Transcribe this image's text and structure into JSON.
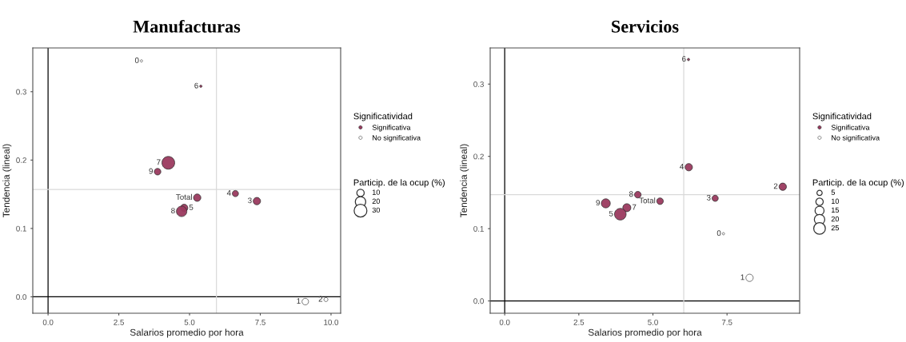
{
  "chart_data": [
    {
      "type": "bubble",
      "title": "Manufacturas",
      "xlabel": "Salarios promedio por hora",
      "ylabel": "Tendencia (lineal)",
      "legend_title": "Significatividad",
      "legend": "right",
      "xlim": [
        -0.54,
        10.34
      ],
      "ylim": [
        -0.024,
        0.364
      ],
      "xticks": [
        {
          "value": 0,
          "label": "0.0"
        },
        {
          "value": 2.5,
          "label": "2.5"
        },
        {
          "value": 5,
          "label": "5.0"
        },
        {
          "value": 7.5,
          "label": "7.5"
        },
        {
          "value": 10,
          "label": "10.0"
        }
      ],
      "yticks": [
        {
          "value": 0,
          "label": "0.0"
        },
        {
          "value": 0.1,
          "label": "0.1"
        },
        {
          "value": 0.2,
          "label": "0.2"
        },
        {
          "value": 0.3,
          "label": "0.3"
        }
      ],
      "grid": false,
      "size_legend": [
        10,
        20,
        30
      ],
      "series": [
        {
          "name": "Significativa",
          "color": "#9b3a5f",
          "x": [
            5.4,
            4.25,
            3.87,
            5.27,
            6.62,
            7.38,
            4.81,
            4.72
          ],
          "values": [
            0.308,
            0.196,
            0.183,
            0.145,
            0.151,
            0.14,
            0.13,
            0.125
          ],
          "sizes": [
            1,
            30,
            8,
            10,
            7,
            10,
            10,
            20
          ]
        },
        {
          "name": "No significativa",
          "color": "#ffffff",
          "x": [
            3.3,
            9.09,
            9.82
          ],
          "values": [
            0.345,
            -0.007,
            -0.004
          ],
          "sizes": [
            1,
            8,
            3
          ]
        }
      ],
      "ref_lines": [
        {
          "axis": "x",
          "value": 0,
          "color": "#000000"
        },
        {
          "axis": "y",
          "value": 0,
          "color": "#000000"
        },
        {
          "axis": "x",
          "value": 5.95,
          "color": "#d9d9d9"
        },
        {
          "axis": "y",
          "value": 0.157,
          "color": "#d9d9d9"
        }
      ],
      "annotations": [
        "Particip. de la ocup (%)",
        {
          "text": "0",
          "x": 3.3,
          "y": 0.345
        },
        {
          "text": "6",
          "x": 5.4,
          "y": 0.308
        },
        {
          "text": "7",
          "x": 4.25,
          "y": 0.196
        },
        {
          "text": "9",
          "x": 3.87,
          "y": 0.183
        },
        {
          "text": "Total",
          "x": 5.27,
          "y": 0.145
        },
        {
          "text": "4",
          "x": 6.62,
          "y": 0.151
        },
        {
          "text": "3",
          "x": 7.38,
          "y": 0.14
        },
        {
          "text": "5",
          "x": 4.81,
          "y": 0.13
        },
        {
          "text": "8",
          "x": 4.72,
          "y": 0.125
        },
        {
          "text": "1",
          "x": 9.09,
          "y": -0.007
        },
        {
          "text": "2",
          "x": 9.82,
          "y": -0.004
        }
      ]
    },
    {
      "type": "bubble",
      "title": "Servicios",
      "xlabel": "Salarios promedio por hora",
      "ylabel": "Tendencia (lineal)",
      "legend_title": "Significatividad",
      "legend": "right",
      "xlim": [
        -0.49,
        9.95
      ],
      "ylim": [
        -0.017,
        0.35
      ],
      "xticks": [
        {
          "value": 0,
          "label": "0.0"
        },
        2.5,
        {
          "value": 5,
          "label": "5.0"
        },
        7.5
      ],
      "yticks": [
        {
          "value": 0,
          "label": "0.0"
        },
        0.1,
        0.2,
        0.3
      ],
      "grid": false,
      "size_legend": [
        5,
        10,
        15,
        20,
        25
      ],
      "series": [
        {
          "name": "Significativa",
          "color": "#9b3a5f",
          "x": [
            6.2,
            6.21,
            9.38,
            4.49,
            5.24,
            7.1,
            3.41,
            4.12,
            3.9
          ],
          "values": [
            0.334,
            0.185,
            0.158,
            0.147,
            0.138,
            0.142,
            0.135,
            0.129,
            0.12
          ],
          "sizes": [
            1,
            10,
            10,
            8,
            8,
            7,
            15,
            12,
            25
          ]
        },
        {
          "name": "No significativa",
          "color": "#ffffff",
          "x": [
            7.38,
            8.26
          ],
          "values": [
            0.093,
            0.032
          ],
          "sizes": [
            1,
            10
          ]
        }
      ],
      "ref_lines": [
        {
          "axis": "x",
          "value": 0,
          "color": "#000000"
        },
        {
          "axis": "y",
          "value": 0,
          "color": "#000000"
        },
        {
          "axis": "x",
          "value": 6.04,
          "color": "#d9d9d9"
        },
        {
          "axis": "y",
          "value": 0.147,
          "color": "#d9d9d9"
        }
      ],
      "annotations": [
        "Particip. de la ocup (%)",
        {
          "text": "6",
          "x": 6.2,
          "y": 0.334
        },
        {
          "text": "4",
          "x": 6.21,
          "y": 0.185
        },
        {
          "text": "2",
          "x": 9.38,
          "y": 0.158
        },
        {
          "text": "8",
          "x": 4.49,
          "y": 0.147
        },
        {
          "text": "Total",
          "x": 5.24,
          "y": 0.138
        },
        {
          "text": "3",
          "x": 7.1,
          "y": 0.142
        },
        {
          "text": "9",
          "x": 3.41,
          "y": 0.135
        },
        {
          "text": "7",
          "x": 4.12,
          "y": 0.129
        },
        {
          "text": "5",
          "x": 3.9,
          "y": 0.12
        },
        {
          "text": "0",
          "x": 7.38,
          "y": 0.093
        },
        {
          "text": "1",
          "x": 8.26,
          "y": 0.032
        }
      ]
    }
  ]
}
